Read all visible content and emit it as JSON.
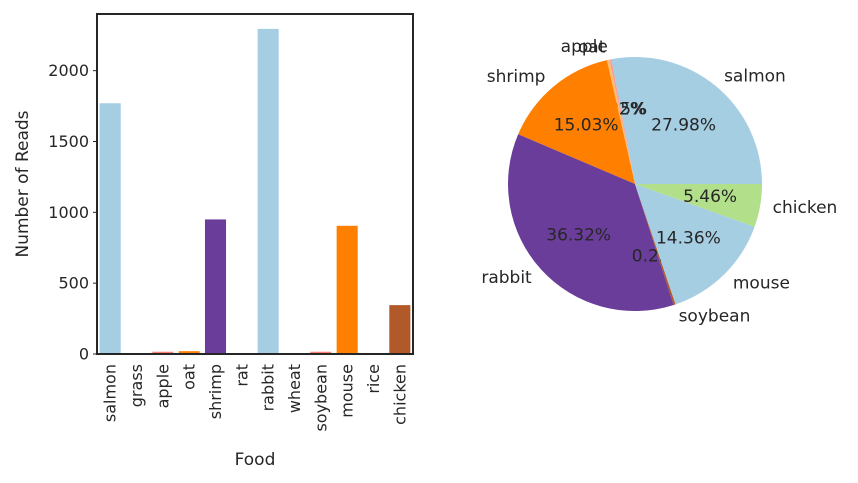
{
  "chart_data": [
    {
      "type": "bar",
      "categories": [
        "salmon",
        "grass",
        "apple",
        "oat",
        "shrimp",
        "rat",
        "rabbit",
        "wheat",
        "soybean",
        "mouse",
        "rice",
        "chicken"
      ],
      "values": [
        1770,
        0,
        16,
        20,
        950,
        0,
        2295,
        0,
        16,
        905,
        0,
        345
      ],
      "colors": [
        "#a6cee3",
        "#a6cee3",
        "#fb8072",
        "#ff7f00",
        "#6a3d9a",
        "#6a3d9a",
        "#a6cee3",
        "#a6cee3",
        "#fb8072",
        "#ff7f00",
        "#ff7f00",
        "#b15928"
      ],
      "xlabel": "Food",
      "ylabel": "Number of Reads",
      "yticks": [
        0,
        500,
        1000,
        1500,
        2000
      ],
      "ylim": [
        0,
        2400
      ],
      "grid": false
    },
    {
      "type": "pie",
      "start_angle_deg": 0,
      "direction": "counterclockwise",
      "slices": [
        {
          "label": "salmon",
          "value": 27.98,
          "pct": "27.98%",
          "color": "#a6cee3"
        },
        {
          "label": "apple",
          "value": 0.25,
          "pct": "0.25%",
          "color": "#fb9a99"
        },
        {
          "label": "oat",
          "value": 0.32,
          "pct": "0.32%",
          "color": "#fdbf6f"
        },
        {
          "label": "shrimp",
          "value": 15.03,
          "pct": "15.03%",
          "color": "#ff7f00"
        },
        {
          "label": "rabbit",
          "value": 36.32,
          "pct": "36.32%",
          "color": "#6a3d9a"
        },
        {
          "label": "soybean",
          "value": 0.25,
          "pct": "0.25%",
          "color": "#b15928"
        },
        {
          "label": "mouse",
          "value": 14.36,
          "pct": "14.36%",
          "color": "#a6cee3"
        },
        {
          "label": "chicken",
          "value": 5.46,
          "pct": "5.46%",
          "color": "#b2df8a"
        }
      ]
    }
  ]
}
